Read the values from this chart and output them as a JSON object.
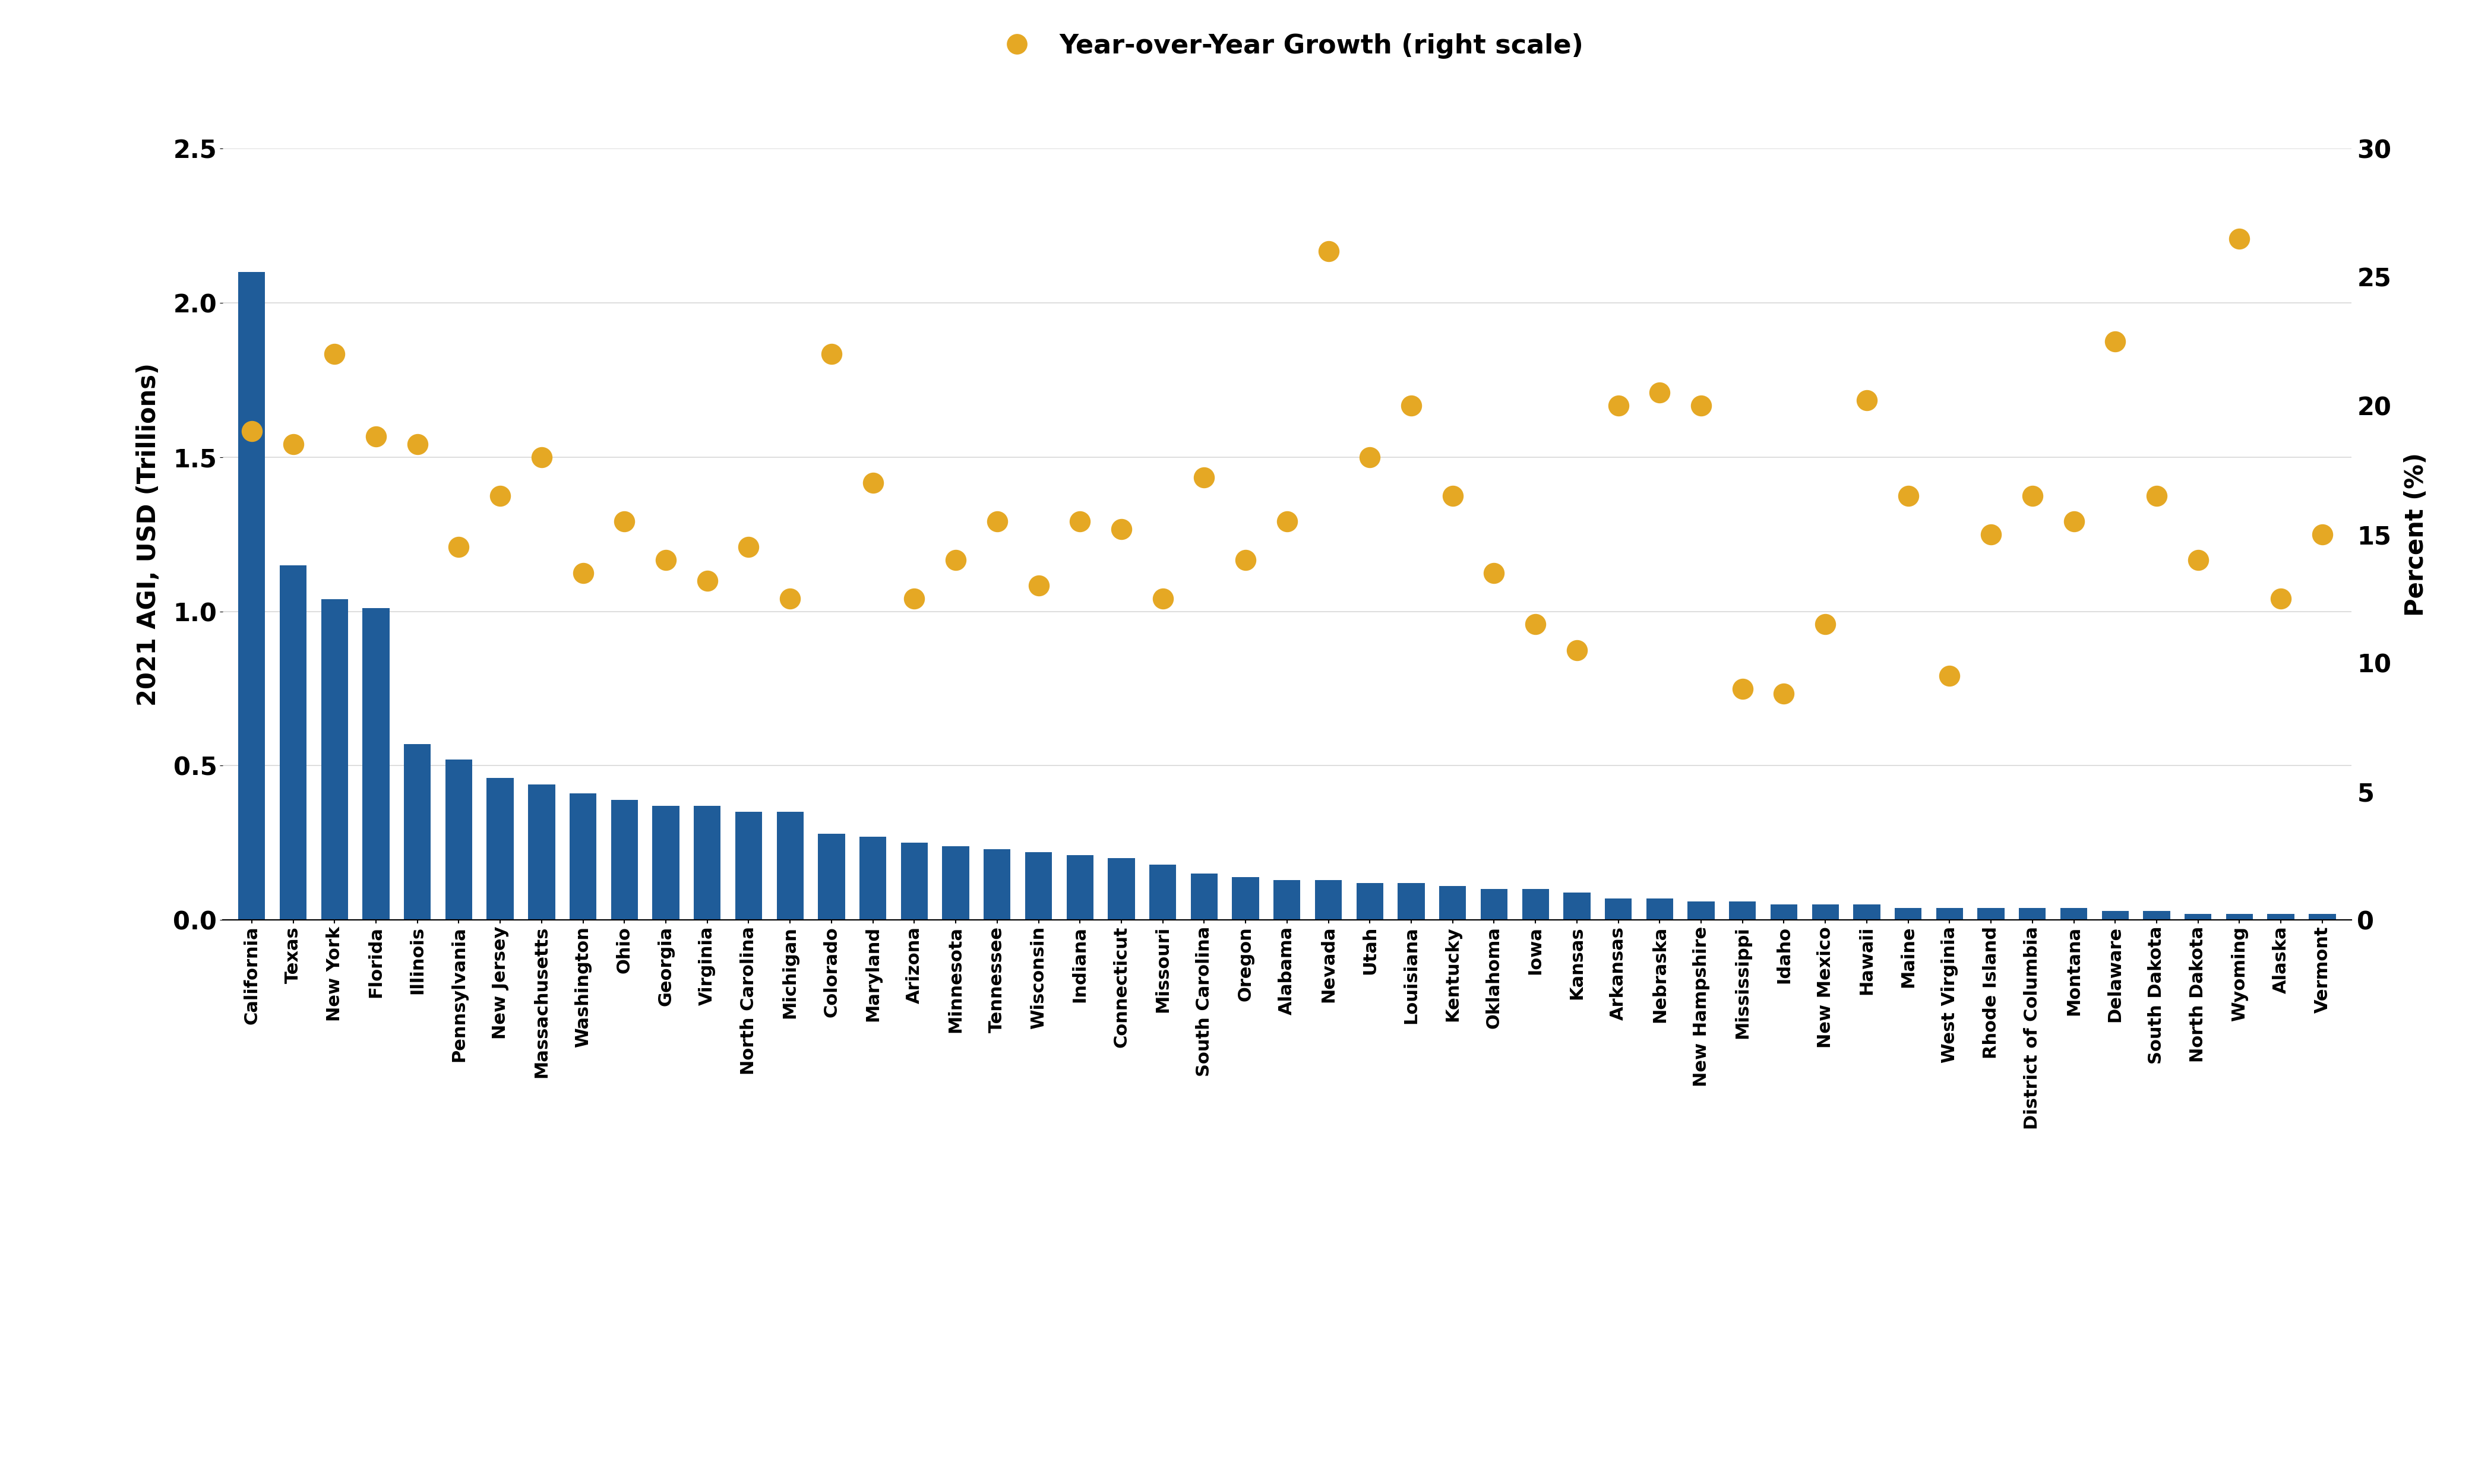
{
  "states": [
    "California",
    "Texas",
    "New York",
    "Florida",
    "Illinois",
    "Pennsylvania",
    "New Jersey",
    "Massachusetts",
    "Washington",
    "Ohio",
    "Georgia",
    "Virginia",
    "North Carolina",
    "Michigan",
    "Colorado",
    "Maryland",
    "Arizona",
    "Minnesota",
    "Tennessee",
    "Wisconsin",
    "Indiana",
    "Connecticut",
    "Missouri",
    "South Carolina",
    "Oregon",
    "Alabama",
    "Nevada",
    "Utah",
    "Louisiana",
    "Kentucky",
    "Oklahoma",
    "Iowa",
    "Kansas",
    "Arkansas",
    "Nebraska",
    "New Hampshire",
    "Mississippi",
    "Idaho",
    "New Mexico",
    "Hawaii",
    "Maine",
    "West Virginia",
    "Rhode Island",
    "District of Columbia",
    "Montana",
    "Delaware",
    "South Dakota",
    "North Dakota",
    "Wyoming",
    "Alaska",
    "Vermont"
  ],
  "agi": [
    2.1,
    1.15,
    1.04,
    1.01,
    0.57,
    0.52,
    0.46,
    0.44,
    0.41,
    0.39,
    0.37,
    0.37,
    0.35,
    0.35,
    0.28,
    0.27,
    0.25,
    0.24,
    0.23,
    0.22,
    0.21,
    0.2,
    0.18,
    0.15,
    0.14,
    0.13,
    0.13,
    0.12,
    0.12,
    0.11,
    0.1,
    0.1,
    0.09,
    0.07,
    0.07,
    0.06,
    0.06,
    0.05,
    0.05,
    0.05,
    0.04,
    0.04,
    0.04,
    0.04,
    0.04,
    0.03,
    0.03,
    0.02,
    0.02,
    0.02,
    0.02
  ],
  "yoy_growth": [
    19.0,
    18.5,
    22.0,
    18.8,
    18.5,
    14.5,
    16.5,
    18.0,
    13.5,
    15.5,
    14.0,
    13.2,
    14.5,
    12.5,
    22.0,
    17.0,
    12.5,
    14.0,
    15.5,
    13.0,
    15.5,
    15.2,
    12.5,
    17.2,
    14.0,
    15.5,
    26.0,
    18.0,
    20.0,
    16.5,
    13.5,
    11.5,
    10.5,
    20.0,
    20.5,
    20.0,
    9.0,
    8.8,
    11.5,
    20.2,
    16.5,
    9.5,
    15.0,
    16.5,
    15.5,
    22.5,
    16.5,
    14.0,
    26.5,
    12.5,
    15.0
  ],
  "bar_color": "#1F5C99",
  "dot_color": "#E5A824",
  "ylabel_left": "2021 AGI, USD (Trillions)",
  "ylabel_right": "Percent (%)",
  "legend_label": "Year-over-Year Growth (right scale)",
  "ylim_left": [
    0,
    2.5
  ],
  "ylim_right": [
    0,
    30
  ],
  "yticks_left": [
    0.0,
    0.5,
    1.0,
    1.5,
    2.0,
    2.5
  ],
  "yticks_right": [
    0,
    5,
    10,
    15,
    20,
    25,
    30
  ],
  "background_color": "#FFFFFF",
  "grid_color": "#D8D8D8"
}
